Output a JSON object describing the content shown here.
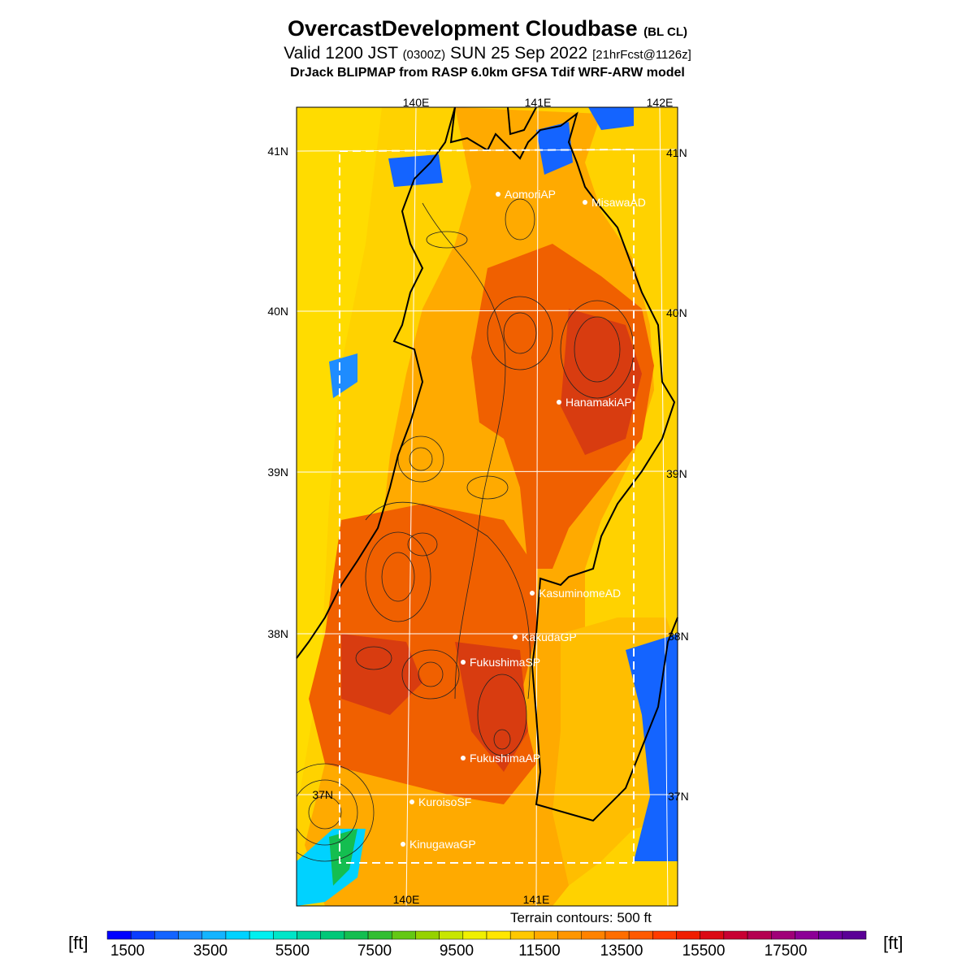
{
  "header": {
    "title": "OvercastDevelopment Cloudbase",
    "title_tag": "(BL CL)",
    "valid_main": "Valid 1200 JST",
    "valid_zulu": "(0300Z)",
    "valid_date": "SUN 25 Sep 2022",
    "valid_fcst": "[21hrFcst@1126z]",
    "subtitle": "DrJack BLIPMAP from RASP 6.0km GFSA Tdif WRF-ARW model"
  },
  "map": {
    "lon_labels_top": [
      "140E",
      "141E",
      "142E"
    ],
    "lon_labels_bottom": [
      "140E",
      "141E"
    ],
    "lat_labels_left": [
      "41N",
      "40N",
      "39N",
      "38N",
      "37N"
    ],
    "lat_labels_right": [
      "41N",
      "40N",
      "39N",
      "38N",
      "37N"
    ],
    "stations": [
      {
        "name": "AomoriAP"
      },
      {
        "name": "MisawaAD"
      },
      {
        "name": "HanamakiAP"
      },
      {
        "name": "KasuminomeAD"
      },
      {
        "name": "KakudaGP"
      },
      {
        "name": "FukushimaSP"
      },
      {
        "name": "FukushimaAP"
      },
      {
        "name": "KuroisoSF"
      },
      {
        "name": "KinugawaGP"
      }
    ]
  },
  "footer": {
    "terrain_note": "Terrain contours: 500 ft",
    "unit_left": "[ft]",
    "unit_right": "[ft]"
  },
  "colorbar": {
    "labels": [
      "1500",
      "3500",
      "5500",
      "7500",
      "9500",
      "11500",
      "13500",
      "15500",
      "17500"
    ],
    "colors": [
      "#0000ff",
      "#0a3cff",
      "#1464ff",
      "#1e8cff",
      "#14b4ff",
      "#00d2ff",
      "#00f0f0",
      "#00e6c8",
      "#00d2a0",
      "#00c878",
      "#14be50",
      "#32be32",
      "#64c814",
      "#96d200",
      "#c8e600",
      "#f0f000",
      "#ffe600",
      "#ffc800",
      "#ffaa00",
      "#ff9600",
      "#ff8200",
      "#ff6e00",
      "#ff5a00",
      "#ff3c00",
      "#f01e00",
      "#dc0a14",
      "#c80032",
      "#b40050",
      "#a00078",
      "#8c0096",
      "#6e00a0",
      "#5a0096"
    ]
  },
  "colors": {
    "land_base": "#ffaa00",
    "ocean_base": "#ffd200",
    "high": "#f05000",
    "very_high": "#d82020",
    "low_blue": "#1464ff",
    "low_cyan": "#00d2ff",
    "low_green": "#14be50"
  }
}
